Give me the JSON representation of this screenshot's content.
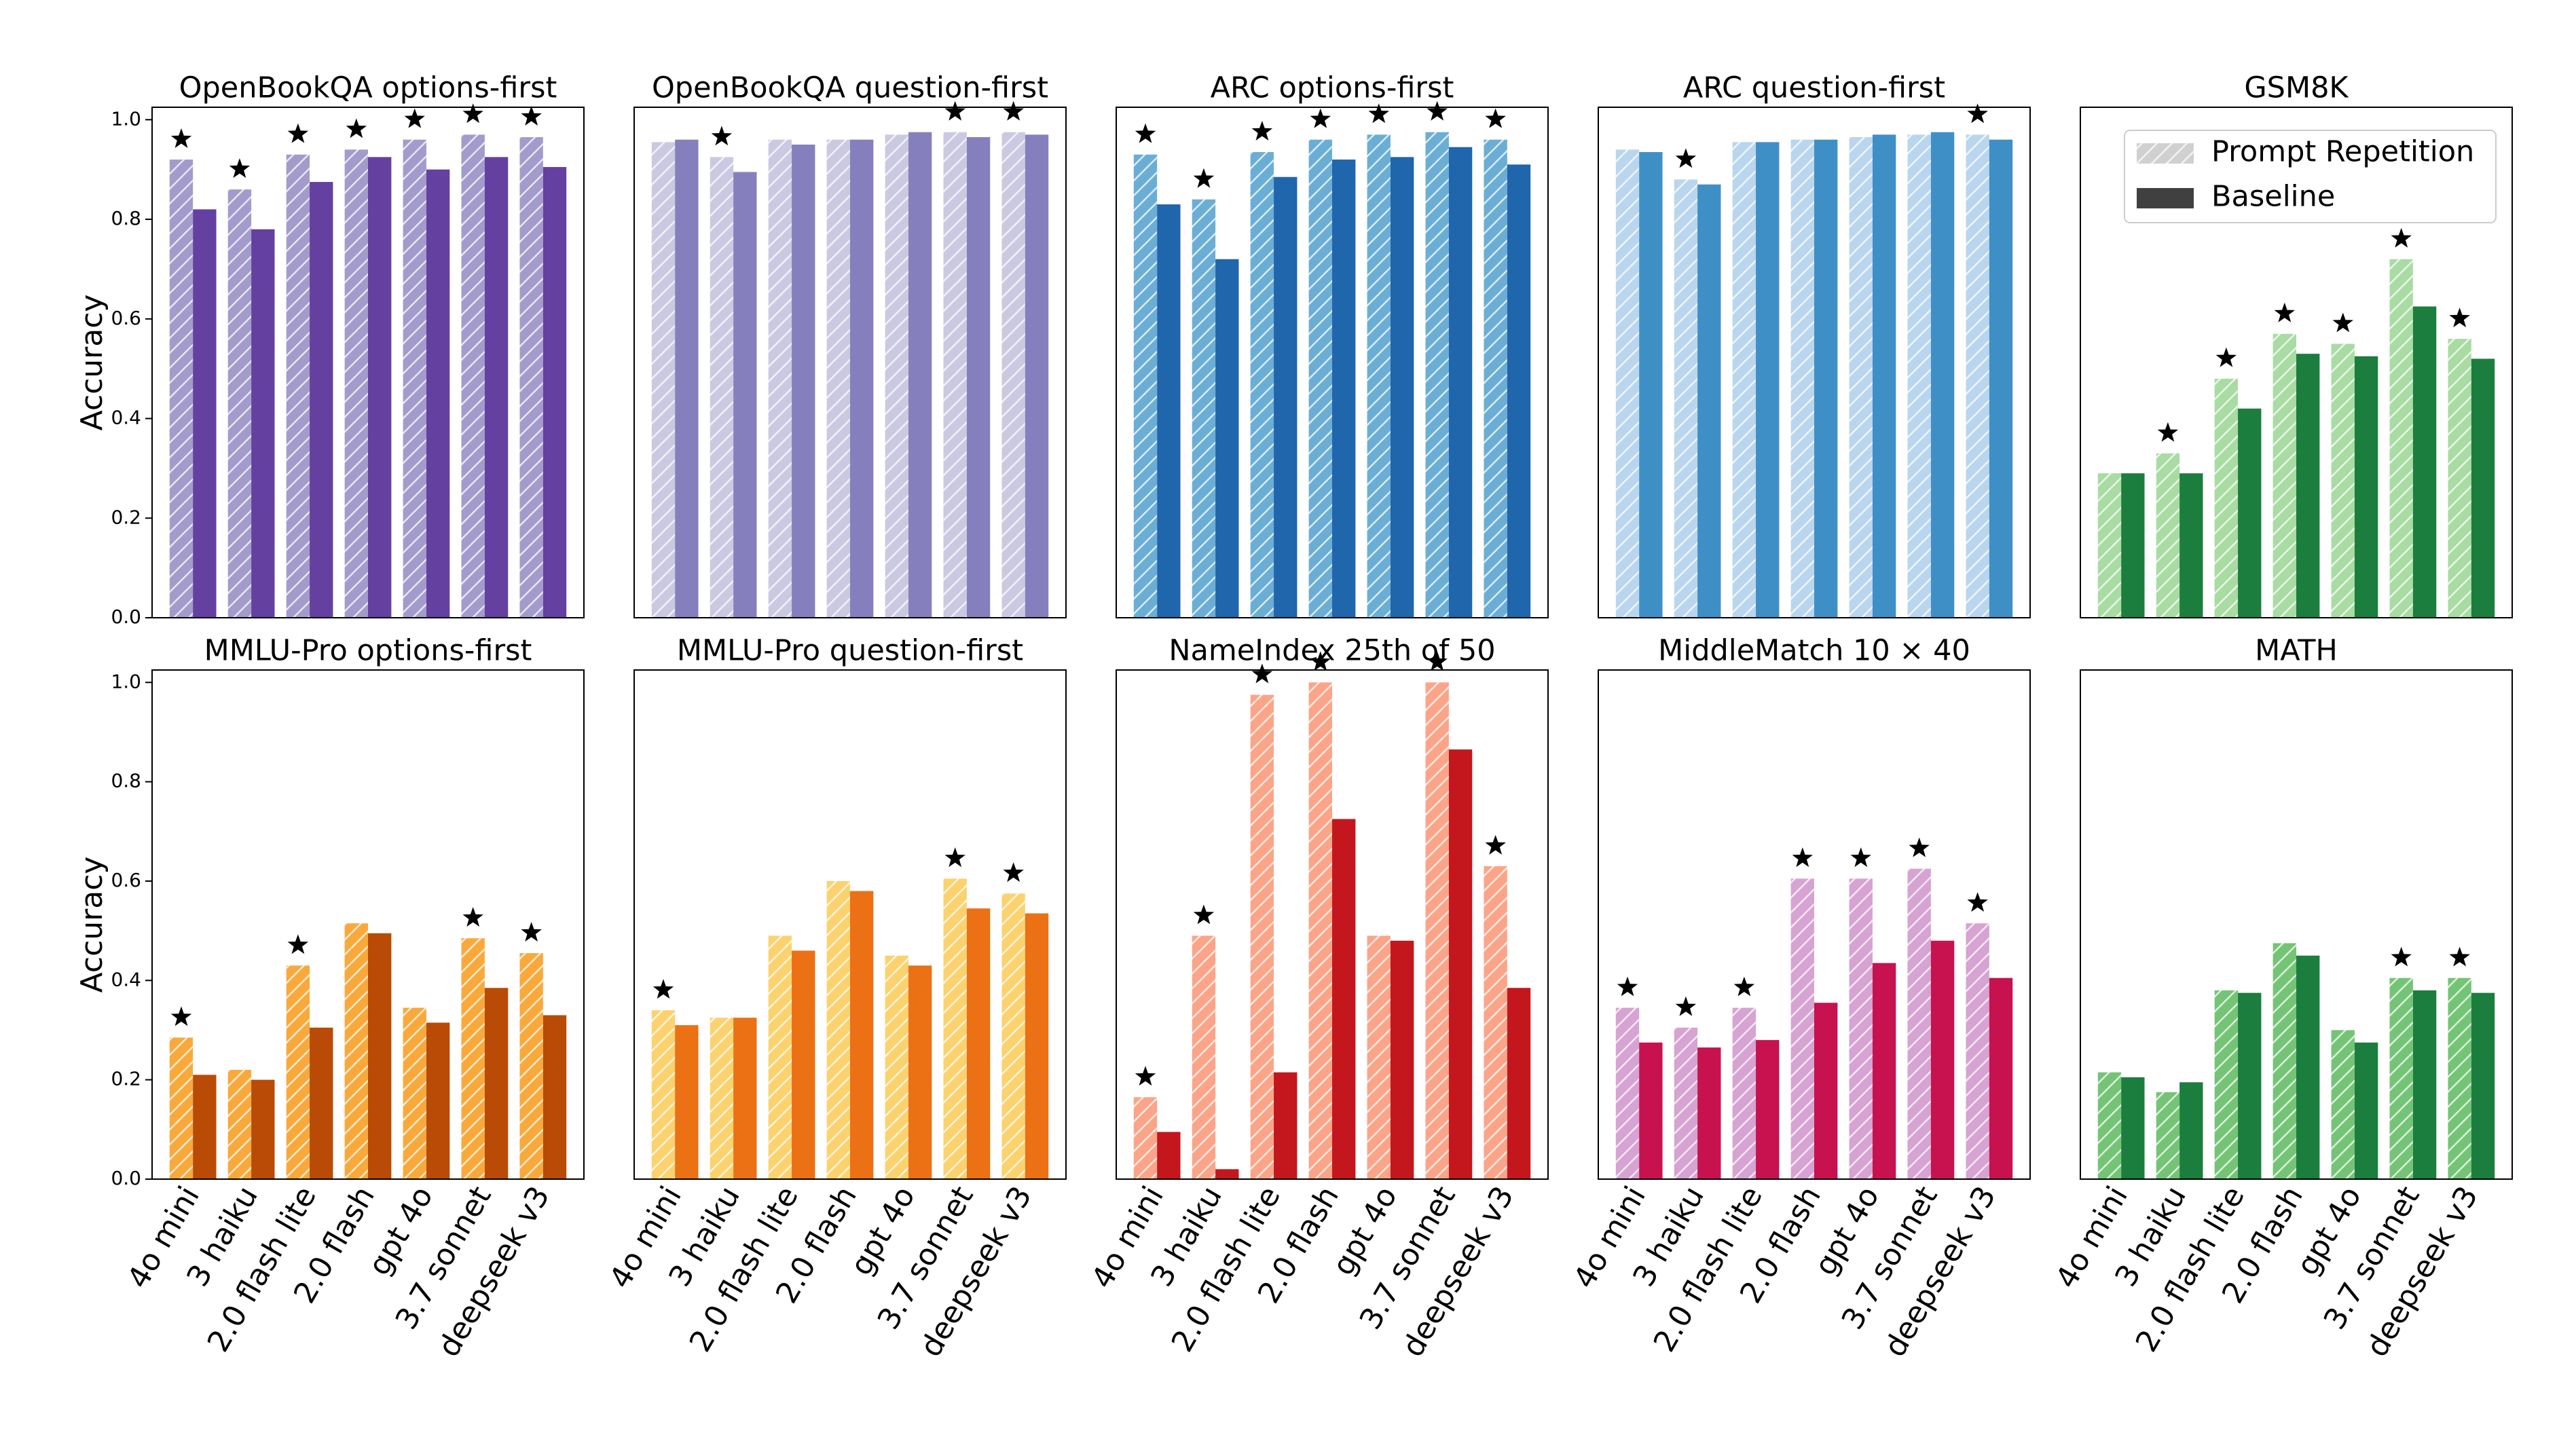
{
  "chart_data": [
    {
      "type": "bar",
      "title": "OpenBookQA options-first",
      "ylabel": "Accuracy",
      "ylim": [
        0,
        1.025
      ],
      "yticks": [
        {
          "value": 0,
          "label": "0.0"
        },
        0.2,
        0.4,
        0.6,
        0.8,
        {
          "value": 1,
          "label": "1.0"
        }
      ],
      "series": [
        {
          "name": "Prompt Repetition",
          "hatch": "//",
          "color": "#a39bcc",
          "values": [
            0.92,
            0.86,
            0.93,
            0.94,
            0.96,
            0.97,
            0.965
          ]
        },
        {
          "name": "Baseline",
          "color": "#6440a0",
          "values": [
            0.82,
            0.78,
            0.875,
            0.925,
            0.9,
            0.925,
            0.905
          ]
        }
      ],
      "stars": [
        true,
        true,
        true,
        true,
        true,
        true,
        true
      ]
    },
    {
      "type": "bar",
      "title": "OpenBookQA question-first",
      "ylim": [
        0,
        1.025
      ],
      "series": [
        {
          "name": "Prompt Repetition",
          "hatch": "//",
          "color": "#cbc9e2",
          "values": [
            0.955,
            0.925,
            0.96,
            0.96,
            0.97,
            0.975,
            0.975
          ]
        },
        {
          "name": "Baseline",
          "color": "#8580bd",
          "values": [
            0.96,
            0.895,
            0.95,
            0.96,
            0.975,
            0.965,
            0.97
          ]
        }
      ],
      "stars": [
        false,
        true,
        false,
        false,
        false,
        true,
        true
      ]
    },
    {
      "type": "bar",
      "title": "ARC options-first",
      "ylim": [
        0,
        1.025
      ],
      "series": [
        {
          "name": "Prompt Repetition",
          "hatch": "//",
          "color": "#6aaed6",
          "values": [
            0.93,
            0.84,
            0.935,
            0.96,
            0.97,
            0.975,
            0.96
          ]
        },
        {
          "name": "Baseline",
          "color": "#1f66ad",
          "values": [
            0.83,
            0.72,
            0.885,
            0.92,
            0.925,
            0.945,
            0.91
          ]
        }
      ],
      "stars": [
        true,
        true,
        true,
        true,
        true,
        true,
        true
      ]
    },
    {
      "type": "bar",
      "title": "ARC question-first",
      "ylim": [
        0,
        1.025
      ],
      "series": [
        {
          "name": "Prompt Repetition",
          "hatch": "//",
          "color": "#b9d6ee",
          "values": [
            0.94,
            0.88,
            0.955,
            0.96,
            0.965,
            0.97,
            0.97
          ]
        },
        {
          "name": "Baseline",
          "color": "#3f8fc7",
          "values": [
            0.935,
            0.87,
            0.955,
            0.96,
            0.97,
            0.975,
            0.96
          ]
        }
      ],
      "stars": [
        false,
        true,
        false,
        false,
        false,
        false,
        true
      ]
    },
    {
      "type": "bar",
      "title": "GSM8K",
      "ylim": [
        0,
        1.025
      ],
      "series": [
        {
          "name": "Prompt Repetition",
          "hatch": "//",
          "color": "#a8dca2",
          "values": [
            0.29,
            0.33,
            0.48,
            0.57,
            0.55,
            0.72,
            0.56
          ]
        },
        {
          "name": "Baseline",
          "color": "#1b7e3e",
          "values": [
            0.29,
            0.29,
            0.42,
            0.53,
            0.525,
            0.625,
            0.52
          ]
        }
      ],
      "stars": [
        false,
        true,
        true,
        true,
        true,
        true,
        true
      ],
      "legend": {
        "loc": "upper right",
        "colors": [
          "#d0d0d0",
          "#404040"
        ]
      }
    },
    {
      "type": "bar",
      "title": "MMLU-Pro options-first",
      "ylabel": "Accuracy",
      "ylim": [
        0,
        1.025
      ],
      "yticks": [
        {
          "value": 0,
          "label": "0.0"
        },
        0.2,
        0.4,
        0.6,
        0.8,
        {
          "value": 1,
          "label": "1.0"
        }
      ],
      "categories": [
        "4o mini",
        "3 haiku",
        "2.0 flash lite",
        "2.0 flash",
        "gpt 4o",
        "3.7 sonnet",
        "deepseek v3"
      ],
      "series": [
        {
          "name": "Prompt Repetition",
          "hatch": "//",
          "color": "#f9a93b",
          "values": [
            0.285,
            0.22,
            0.43,
            0.515,
            0.345,
            0.485,
            0.455
          ]
        },
        {
          "name": "Baseline",
          "color": "#b94b06",
          "values": [
            0.21,
            0.2,
            0.305,
            0.495,
            0.315,
            0.385,
            0.33
          ]
        }
      ],
      "stars": [
        true,
        false,
        true,
        false,
        false,
        true,
        true
      ]
    },
    {
      "type": "bar",
      "title": "MMLU-Pro question-first",
      "ylim": [
        0,
        1.025
      ],
      "categories": [
        "4o mini",
        "3 haiku",
        "2.0 flash lite",
        "2.0 flash",
        "gpt 4o",
        "3.7 sonnet",
        "deepseek v3"
      ],
      "series": [
        {
          "name": "Prompt Repetition",
          "hatch": "//",
          "color": "#fcd26e",
          "values": [
            0.34,
            0.325,
            0.49,
            0.6,
            0.45,
            0.605,
            0.575
          ]
        },
        {
          "name": "Baseline",
          "color": "#ec7014",
          "values": [
            0.31,
            0.325,
            0.46,
            0.58,
            0.43,
            0.545,
            0.535
          ]
        }
      ],
      "stars": [
        true,
        false,
        false,
        false,
        false,
        true,
        true
      ]
    },
    {
      "type": "bar",
      "title": "NameIndex 25th of 50",
      "ylim": [
        0,
        1.025
      ],
      "categories": [
        "4o mini",
        "3 haiku",
        "2.0 flash lite",
        "2.0 flash",
        "gpt 4o",
        "3.7 sonnet",
        "deepseek v3"
      ],
      "series": [
        {
          "name": "Prompt Repetition",
          "hatch": "//",
          "color": "#fca488",
          "values": [
            0.165,
            0.49,
            0.975,
            1.0,
            0.49,
            1.0,
            0.63
          ]
        },
        {
          "name": "Baseline",
          "color": "#c4161d",
          "values": [
            0.095,
            0.02,
            0.215,
            0.725,
            0.48,
            0.865,
            0.385
          ]
        }
      ],
      "stars": [
        true,
        true,
        true,
        true,
        false,
        true,
        true
      ]
    },
    {
      "type": "bar",
      "title": "MiddleMatch 10 × 40",
      "ylim": [
        0,
        1.025
      ],
      "categories": [
        "4o mini",
        "3 haiku",
        "2.0 flash lite",
        "2.0 flash",
        "gpt 4o",
        "3.7 sonnet",
        "deepseek v3"
      ],
      "series": [
        {
          "name": "Prompt Repetition",
          "hatch": "//",
          "color": "#d6a3d2",
          "values": [
            0.345,
            0.305,
            0.345,
            0.605,
            0.605,
            0.625,
            0.515
          ]
        },
        {
          "name": "Baseline",
          "color": "#c8114f",
          "values": [
            0.275,
            0.265,
            0.28,
            0.355,
            0.435,
            0.48,
            0.405
          ]
        }
      ],
      "stars": [
        true,
        true,
        true,
        true,
        true,
        true,
        true
      ]
    },
    {
      "type": "bar",
      "title": "MATH",
      "ylim": [
        0,
        1.025
      ],
      "categories": [
        "4o mini",
        "3 haiku",
        "2.0 flash lite",
        "2.0 flash",
        "gpt 4o",
        "3.7 sonnet",
        "deepseek v3"
      ],
      "series": [
        {
          "name": "Prompt Repetition",
          "hatch": "//",
          "color": "#74c476",
          "values": [
            0.215,
            0.175,
            0.38,
            0.475,
            0.3,
            0.405,
            0.405
          ]
        },
        {
          "name": "Baseline",
          "color": "#1b7e3e",
          "values": [
            0.205,
            0.195,
            0.375,
            0.45,
            0.275,
            0.38,
            0.375
          ]
        }
      ],
      "stars": [
        false,
        false,
        false,
        false,
        false,
        true,
        true
      ]
    }
  ]
}
